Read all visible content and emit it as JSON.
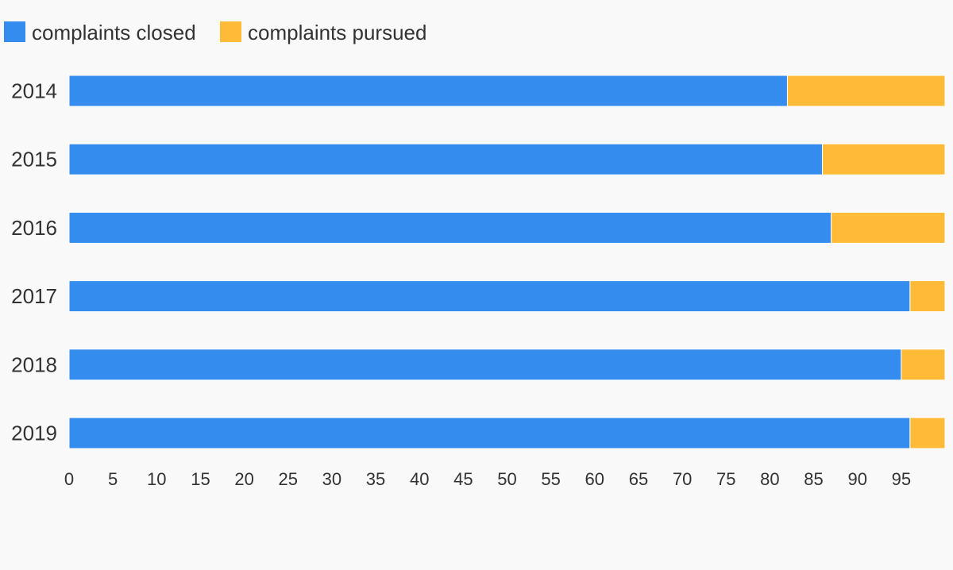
{
  "chart_data": {
    "type": "bar",
    "orientation": "horizontal",
    "stacked": true,
    "categories": [
      "2014",
      "2015",
      "2016",
      "2017",
      "2018",
      "2019"
    ],
    "series": [
      {
        "name": "complaints closed",
        "color": "#338cee",
        "values": [
          82,
          86,
          87,
          96,
          95,
          96
        ]
      },
      {
        "name": "complaints pursued",
        "color": "#ffbb38",
        "values": [
          18,
          14,
          13,
          4,
          5,
          4
        ]
      }
    ],
    "x_ticks": [
      "0",
      "5",
      "10",
      "15",
      "20",
      "25",
      "30",
      "35",
      "40",
      "45",
      "50",
      "55",
      "60",
      "65",
      "70",
      "75",
      "80",
      "85",
      "90",
      "95"
    ],
    "xlim": [
      0,
      100
    ],
    "legend_position": "top-left",
    "grid": false
  }
}
